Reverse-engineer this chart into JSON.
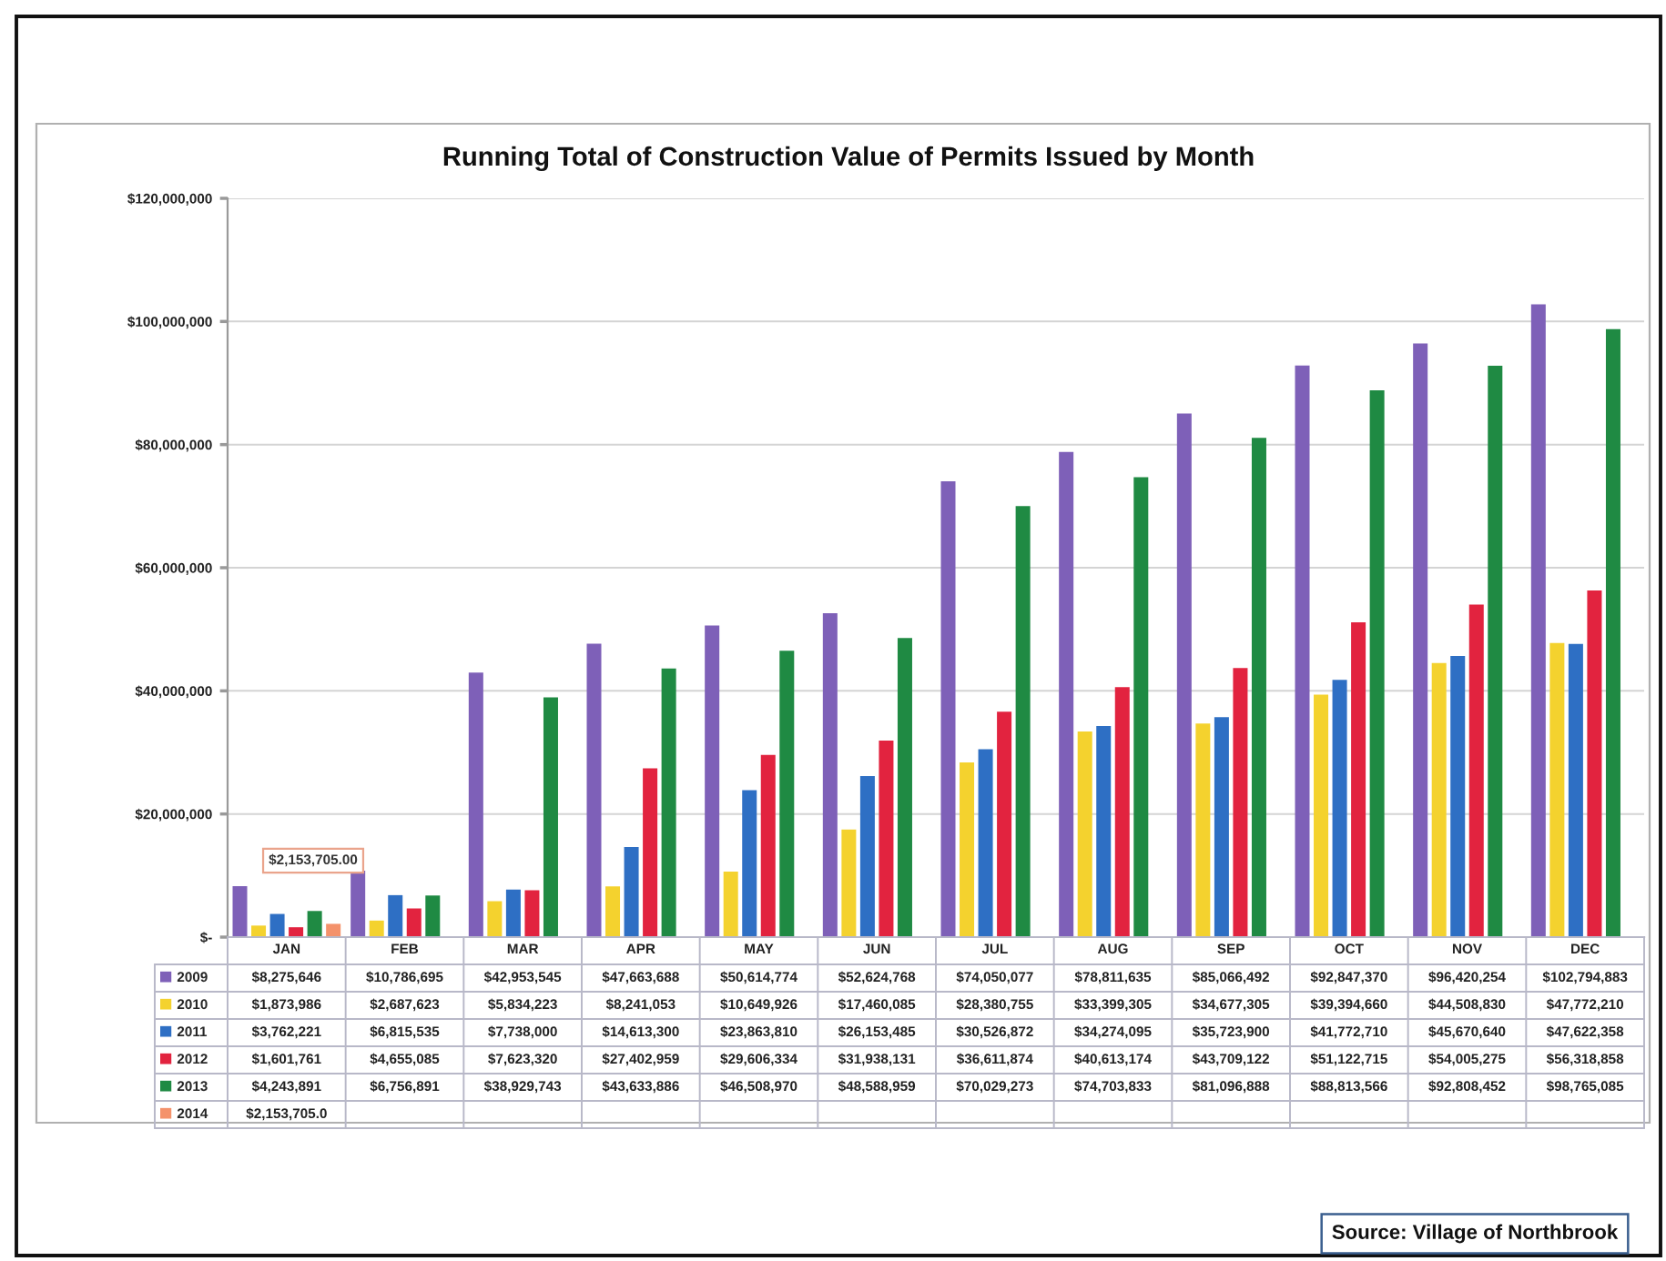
{
  "chart_data": {
    "type": "bar",
    "title": "Running Total of Construction Value of Permits Issued by Month",
    "categories": [
      "JAN",
      "FEB",
      "MAR",
      "APR",
      "MAY",
      "JUN",
      "JUL",
      "AUG",
      "SEP",
      "OCT",
      "NOV",
      "DEC"
    ],
    "series": [
      {
        "name": "2009",
        "color": "#7e60b8",
        "values": [
          8275646,
          10786695,
          42953545,
          47663688,
          50614774,
          52624768,
          74050077,
          78811635,
          85066492,
          92847370,
          96420254,
          102794883
        ],
        "value_labels": [
          "$8,275,646",
          "$10,786,695",
          "$42,953,545",
          "$47,663,688",
          "$50,614,774",
          "$52,624,768",
          "$74,050,077",
          "$78,811,635",
          "$85,066,492",
          "$92,847,370",
          "$96,420,254",
          "$102,794,883"
        ]
      },
      {
        "name": "2010",
        "color": "#f4d22e",
        "values": [
          1873986,
          2687623,
          5834223,
          8241053,
          10649926,
          17460085,
          28380755,
          33399305,
          34677305,
          39394660,
          44508830,
          47772210
        ],
        "value_labels": [
          "$1,873,986",
          "$2,687,623",
          "$5,834,223",
          "$8,241,053",
          "$10,649,926",
          "$17,460,085",
          "$28,380,755",
          "$33,399,305",
          "$34,677,305",
          "$39,394,660",
          "$44,508,830",
          "$47,772,210"
        ]
      },
      {
        "name": "2011",
        "color": "#2e6fc4",
        "values": [
          3762221,
          6815535,
          7738000,
          14613300,
          23863810,
          26153485,
          30526872,
          34274095,
          35723900,
          41772710,
          45670640,
          47622358
        ],
        "value_labels": [
          "$3,762,221",
          "$6,815,535",
          "$7,738,000",
          "$14,613,300",
          "$23,863,810",
          "$26,153,485",
          "$30,526,872",
          "$34,274,095",
          "$35,723,900",
          "$41,772,710",
          "$45,670,640",
          "$47,622,358"
        ]
      },
      {
        "name": "2012",
        "color": "#e2233f",
        "values": [
          1601761,
          4655085,
          7623320,
          27402959,
          29606334,
          31938131,
          36611874,
          40613174,
          43709122,
          51122715,
          54005275,
          56318858
        ],
        "value_labels": [
          "$1,601,761",
          "$4,655,085",
          "$7,623,320",
          "$27,402,959",
          "$29,606,334",
          "$31,938,131",
          "$36,611,874",
          "$40,613,174",
          "$43,709,122",
          "$51,122,715",
          "$54,005,275",
          "$56,318,858"
        ]
      },
      {
        "name": "2013",
        "color": "#1f8a43",
        "values": [
          4243891,
          6756891,
          38929743,
          43633886,
          46508970,
          48588959,
          70029273,
          74703833,
          81096888,
          88813566,
          92808452,
          98765085
        ],
        "value_labels": [
          "$4,243,891",
          "$6,756,891",
          "$38,929,743",
          "$43,633,886",
          "$46,508,970",
          "$48,588,959",
          "$70,029,273",
          "$74,703,833",
          "$81,096,888",
          "$88,813,566",
          "$92,808,452",
          "$98,765,085"
        ]
      },
      {
        "name": "2014",
        "color": "#f4926b",
        "values": [
          2153705,
          null,
          null,
          null,
          null,
          null,
          null,
          null,
          null,
          null,
          null,
          null
        ]
      }
    ],
    "ylim": [
      0,
      120000000
    ],
    "yticks": [
      {
        "value": 0,
        "label": "$-"
      },
      {
        "value": 20000000,
        "label": "$20,000,000"
      },
      {
        "value": 40000000,
        "label": "$40,000,000"
      },
      {
        "value": 60000000,
        "label": "$60,000,000"
      },
      {
        "value": 80000000,
        "label": "$80,000,000"
      },
      {
        "value": 100000000,
        "label": "$100,000,000"
      },
      {
        "value": 120000000,
        "label": "$120,000,000"
      }
    ],
    "grid": "y",
    "legend": "bottom",
    "annotations": [
      "$2,153,705.00",
      "$2,153,705.0",
      "Source: Village of Northbrook"
    ]
  }
}
